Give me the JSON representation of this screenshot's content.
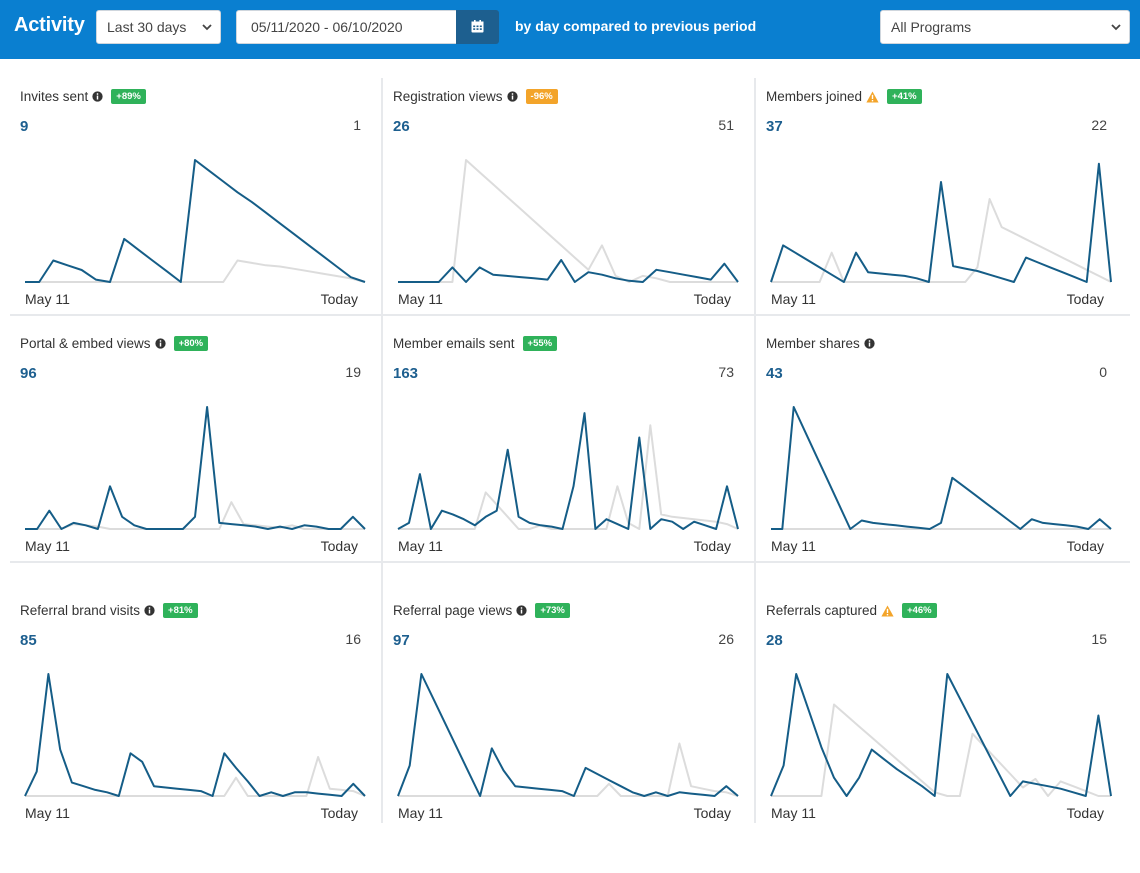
{
  "header": {
    "title": "Activity",
    "range_select": "Last 30 days",
    "date_range": "05/11/2020 - 06/10/2020",
    "compare_text": "by day compared to previous period",
    "program_select": "All Programs",
    "bar_color": "#0a7fd0"
  },
  "colors": {
    "current": "#155d87",
    "previous": "#dcdcdc",
    "badge_up": "#2fb25a",
    "badge_down": "#f3a42a"
  },
  "panels": [
    {
      "title": "Invites sent",
      "icon": "info-icon",
      "badge": "+89%",
      "badge_type": "up",
      "value": "9",
      "previous": "1",
      "x_start": "May 11",
      "x_end": "Today",
      "current_series": [
        0,
        0,
        1.8,
        1.4,
        1,
        0.2,
        0,
        3.6,
        2.7,
        1.8,
        0.9,
        0,
        10.2,
        9.3,
        8.4,
        7.5,
        6.7,
        5.8,
        4.9,
        4,
        3.1,
        2.2,
        1.3,
        0.4,
        0
      ],
      "previous_series": [
        0,
        0,
        0,
        0,
        0,
        0,
        0,
        0,
        0,
        0,
        0,
        0,
        0,
        0,
        0,
        1.8,
        1.6,
        1.4,
        1.3,
        1.1,
        0.9,
        0.7,
        0.5,
        0.3,
        0
      ]
    },
    {
      "title": "Registration views",
      "icon": "info-icon",
      "badge": "-96%",
      "badge_type": "down",
      "value": "26",
      "previous": "51",
      "x_start": "May 11",
      "x_end": "Today",
      "current_series": [
        0,
        0,
        0,
        0,
        1.2,
        0,
        1.2,
        0.6,
        0.5,
        0.4,
        0.3,
        0.2,
        1.8,
        0,
        0.8,
        0.6,
        0.3,
        0.1,
        0,
        1,
        0.8,
        0.6,
        0.4,
        0.2,
        1.5,
        0
      ],
      "previous_series": [
        0,
        0,
        0,
        0,
        0,
        10,
        9,
        8,
        7,
        6,
        5,
        4,
        3,
        2,
        1,
        3,
        0.5,
        0,
        0.5,
        0.3,
        0,
        0,
        0,
        0,
        0,
        0
      ]
    },
    {
      "title": "Members joined",
      "icon": "warn-icon",
      "badge": "+41%",
      "badge_type": "up",
      "value": "37",
      "previous": "22",
      "x_start": "May 11",
      "x_end": "Today",
      "current_series": [
        0,
        3,
        2.4,
        1.8,
        1.2,
        0.6,
        0,
        2.4,
        0.8,
        0.7,
        0.6,
        0.5,
        0.3,
        0,
        8.2,
        1.3,
        1.1,
        0.9,
        0.6,
        0.3,
        0,
        2,
        1.6,
        1.2,
        0.8,
        0.4,
        0,
        9.7,
        0
      ],
      "previous_series": [
        0,
        0,
        0,
        0,
        0,
        2.4,
        0,
        0,
        0,
        0,
        0,
        0,
        0,
        0,
        0,
        0,
        0,
        1.2,
        6.8,
        4.5,
        4,
        3.5,
        3,
        2.5,
        2,
        1.5,
        1,
        0.5,
        0
      ]
    },
    {
      "title": "Portal & embed views",
      "icon": "info-icon",
      "badge": "+80%",
      "badge_type": "up",
      "value": "96",
      "previous": "19",
      "x_start": "May 11",
      "x_end": "Today",
      "current_series": [
        0,
        0,
        1.5,
        0,
        0.5,
        0.3,
        0,
        3.5,
        1,
        0.3,
        0,
        0,
        0,
        0,
        1,
        10,
        0.5,
        0.4,
        0.3,
        0.2,
        0,
        0.2,
        0,
        0.3,
        0.2,
        0,
        0,
        1,
        0
      ],
      "previous_series": [
        0,
        0,
        0,
        0,
        0.4,
        0.3,
        0.2,
        0,
        0,
        0,
        0,
        0,
        0,
        0,
        0,
        0,
        0,
        2.2,
        0.4,
        0.3,
        0.2,
        0.1,
        0.3,
        0,
        0,
        0,
        0,
        0,
        0
      ]
    },
    {
      "title": "Member emails sent",
      "icon": "",
      "badge": "+55%",
      "badge_type": "up",
      "value": "163",
      "previous": "73",
      "x_start": "May 11",
      "x_end": "Today",
      "current_series": [
        0,
        0.5,
        4.5,
        0,
        1.5,
        1.2,
        0.8,
        0.3,
        1,
        1.5,
        6.5,
        1,
        0.5,
        0.3,
        0.2,
        0,
        3.5,
        9.5,
        0,
        0.8,
        0.4,
        0,
        7.5,
        0,
        0.8,
        0.6,
        0,
        0.6,
        0.3,
        0,
        3.5,
        0
      ],
      "previous_series": [
        0,
        0,
        0,
        0,
        0,
        0,
        0,
        0,
        3,
        2,
        1,
        0,
        0,
        0.3,
        0,
        0,
        0,
        0,
        0,
        0,
        3.5,
        0.5,
        0,
        8.5,
        1.2,
        1,
        0.9,
        0.8,
        0.7,
        0.6,
        0.4,
        0
      ]
    },
    {
      "title": "Member shares",
      "icon": "info-icon",
      "badge": "",
      "badge_type": "",
      "value": "43",
      "previous": "0",
      "x_start": "May 11",
      "x_end": "Today",
      "current_series": [
        0,
        0,
        10,
        8,
        6,
        4,
        2,
        0,
        0.7,
        0.5,
        0.4,
        0.3,
        0.2,
        0.1,
        0,
        0.5,
        4.2,
        3.5,
        2.8,
        2.1,
        1.4,
        0.7,
        0,
        0.8,
        0.5,
        0.4,
        0.3,
        0.2,
        0,
        0.8,
        0
      ],
      "previous_series": [
        0,
        0,
        0,
        0,
        0,
        0,
        0,
        0,
        0,
        0,
        0,
        0,
        0,
        0,
        0,
        0,
        0,
        0,
        0,
        0,
        0,
        0,
        0,
        0,
        0,
        0,
        0,
        0,
        0,
        0,
        0
      ]
    },
    {
      "title": "Referral brand visits",
      "icon": "info-icon",
      "badge": "+81%",
      "badge_type": "up",
      "value": "85",
      "previous": "16",
      "x_start": "May 11",
      "x_end": "Today",
      "current_series": [
        0,
        2,
        10,
        3.8,
        1.1,
        0.8,
        0.5,
        0.3,
        0,
        3.5,
        2.8,
        0.8,
        0.7,
        0.6,
        0.5,
        0.4,
        0,
        3.5,
        2.3,
        1.2,
        0,
        0.3,
        0,
        0.3,
        0.3,
        0.2,
        0.1,
        0,
        1,
        0
      ],
      "previous_series": [
        0,
        0,
        0,
        0,
        0,
        0,
        0,
        0,
        0,
        0,
        0,
        0,
        0,
        0,
        0,
        0,
        0,
        0,
        1.5,
        0,
        0,
        0,
        0,
        0,
        0,
        3.2,
        0.6,
        0.5,
        0.4,
        0
      ]
    },
    {
      "title": "Referral page views",
      "icon": "info-icon",
      "badge": "+73%",
      "badge_type": "up",
      "value": "97",
      "previous": "26",
      "x_start": "May 11",
      "x_end": "Today",
      "current_series": [
        0,
        2.5,
        10,
        8,
        6,
        4,
        2,
        0,
        3.9,
        2.1,
        0.8,
        0.7,
        0.6,
        0.5,
        0.4,
        0,
        2.3,
        1.8,
        1.3,
        0.8,
        0.3,
        0,
        0.3,
        0,
        0.3,
        0.2,
        0.1,
        0,
        0.8,
        0
      ],
      "previous_series": [
        0,
        0,
        0,
        0,
        0,
        0,
        0,
        0,
        0,
        0,
        0,
        0,
        0,
        0,
        0,
        0,
        0,
        0,
        1,
        0,
        0,
        0,
        0,
        0,
        4.3,
        0.8,
        0.6,
        0.4,
        0.3,
        0
      ]
    },
    {
      "title": "Referrals captured",
      "icon": "warn-icon",
      "badge": "+46%",
      "badge_type": "up",
      "value": "28",
      "previous": "15",
      "x_start": "May 11",
      "x_end": "Today",
      "current_series": [
        0,
        2.5,
        10,
        7,
        4,
        1.5,
        0,
        1.5,
        3.8,
        3,
        2.2,
        1.5,
        0.8,
        0,
        10,
        8,
        6,
        4,
        2,
        0,
        1.2,
        1,
        0.8,
        0.6,
        0.3,
        0,
        6.6,
        0
      ],
      "previous_series": [
        0,
        0,
        0,
        0,
        0,
        7.5,
        6.6,
        5.7,
        4.8,
        3.9,
        3,
        2.1,
        1.2,
        0.3,
        0,
        0,
        5.1,
        4,
        2.9,
        1.8,
        0.7,
        1.4,
        0,
        1.2,
        0.8,
        0.4,
        0,
        0
      ]
    }
  ]
}
